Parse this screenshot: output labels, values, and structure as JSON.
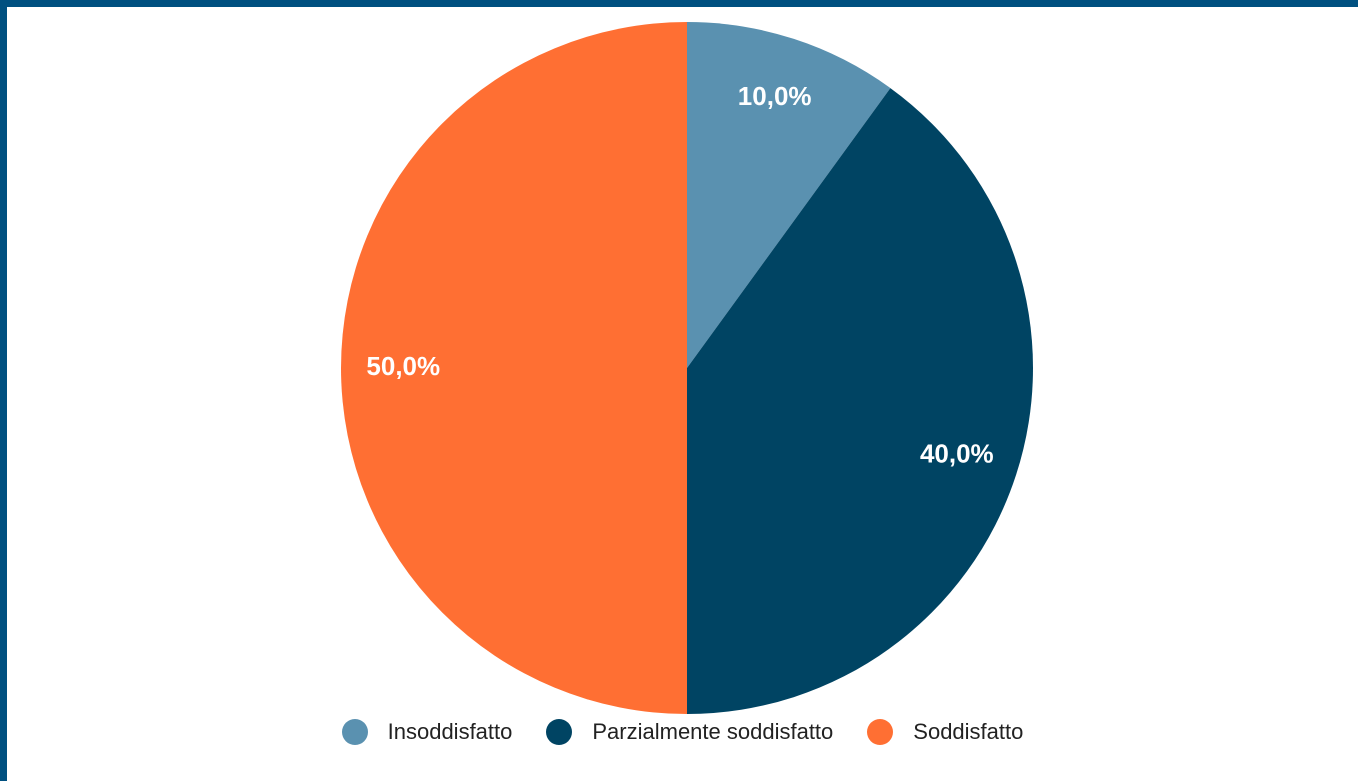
{
  "chart_data": {
    "type": "pie",
    "categories": [
      "Insoddisfatto",
      "Parzialmente soddisfatto",
      "Soddisfatto"
    ],
    "values": [
      10.0,
      40.0,
      50.0
    ],
    "data_labels": [
      "10,0%",
      "40,0%",
      "50,0%"
    ],
    "colors": [
      "#5a91b0",
      "#004463",
      "#ff6f33"
    ],
    "start_angle": "12 o'clock",
    "direction": "clockwise",
    "legend_position": "bottom"
  },
  "frame": {
    "border_color": "#005080",
    "background": "#ffffff"
  }
}
